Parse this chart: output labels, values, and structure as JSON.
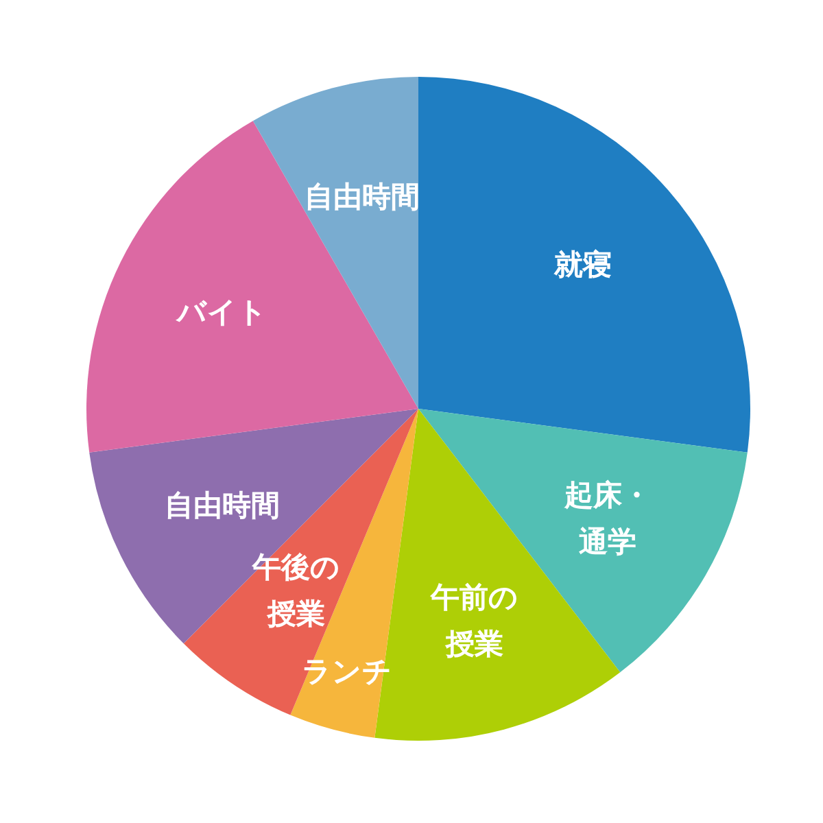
{
  "chart_data": {
    "type": "pie",
    "categories": [
      "就寝",
      "起床・通学",
      "午前の授業",
      "ランチ",
      "午後の授業",
      "自由時間",
      "バイト",
      "自由時間"
    ],
    "values": [
      27.1,
      12.5,
      12.5,
      4.2,
      6.2,
      10.4,
      18.8,
      8.3
    ],
    "colors": [
      "#1f7ec2",
      "#52bfb4",
      "#aecf06",
      "#f6b63c",
      "#ea6153",
      "#8e6eae",
      "#dc69a3",
      "#79acd0"
    ]
  }
}
